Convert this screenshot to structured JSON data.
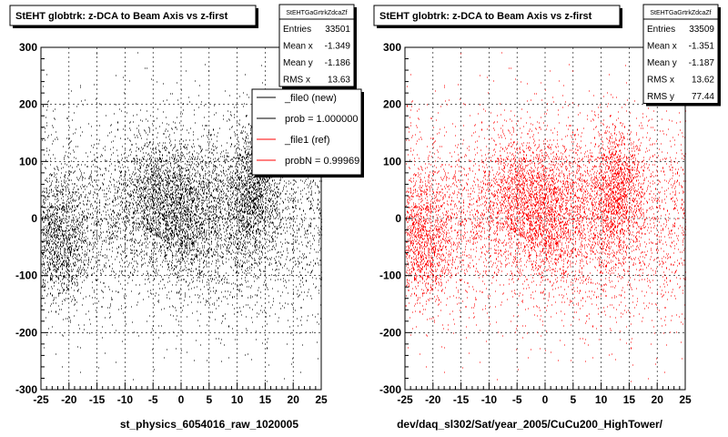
{
  "chart_data": [
    {
      "type": "scatter",
      "title": "StEHT globtrk: z-DCA to Beam Axis vs z-first",
      "xlabel": "st_physics_6054016_raw_1020005",
      "ylabel": "",
      "xlim": [
        -25,
        25
      ],
      "ylim": [
        -300,
        300
      ],
      "xticks": [
        "-25",
        "-20",
        "-15",
        "-10",
        "-5",
        "0",
        "5",
        "10",
        "15",
        "20",
        "25"
      ],
      "yticks": [
        "-300",
        "-200",
        "-100",
        "0",
        "100",
        "200",
        "300"
      ],
      "grid": true,
      "marker_color": "#000000",
      "n_points": 33501,
      "stats": {
        "name": "StEHTGaGrtrkZdcaZf",
        "rows": [
          {
            "label": "Entries",
            "value": "33501"
          },
          {
            "label": "Mean x",
            "value": "-1.349"
          },
          {
            "label": "Mean y",
            "value": "-1.186"
          },
          {
            "label": "RMS x",
            "value": "13.63"
          }
        ]
      },
      "legend": {
        "placement": "top-right",
        "entries": [
          {
            "label": "_file0 (new)",
            "color": "#000000"
          },
          {
            "label": "prob = 1.000000",
            "color": "#000000"
          },
          {
            "label": "_file1 (ref)",
            "color": "#ff0000"
          },
          {
            "label": "probN = 0.99969",
            "color": "#ff0000"
          }
        ]
      },
      "clusters": [
        {
          "x": -22,
          "y": -40,
          "sx": 2.8,
          "sy": 55,
          "w": 0.16
        },
        {
          "x": -5,
          "y": 40,
          "sx": 3.5,
          "sy": 60,
          "w": 0.14
        },
        {
          "x": 0,
          "y": 10,
          "sx": 2.5,
          "sy": 50,
          "w": 0.12
        },
        {
          "x": 13,
          "y": 40,
          "sx": 2.2,
          "sy": 60,
          "w": 0.18
        },
        {
          "x": 6,
          "y": 5,
          "sx": 4,
          "sy": 70,
          "w": 0.1
        }
      ]
    },
    {
      "type": "scatter",
      "title": "StEHT globtrk: z-DCA to Beam Axis vs z-first",
      "xlabel": "dev/daq_sl302/Sat/year_2005/CuCu200_HighTower/",
      "ylabel": "",
      "xlim": [
        -25,
        25
      ],
      "ylim": [
        -300,
        300
      ],
      "xticks": [
        "-25",
        "-20",
        "-15",
        "-10",
        "-5",
        "0",
        "5",
        "10",
        "15",
        "20",
        "25"
      ],
      "yticks": [
        "-300",
        "-200",
        "-100",
        "0",
        "100",
        "200",
        "300"
      ],
      "grid": true,
      "marker_color": "#ff0000",
      "n_points": 33509,
      "stats": {
        "name": "StEHTGaGrtrkZdcaZf",
        "rows": [
          {
            "label": "Entries",
            "value": "33509"
          },
          {
            "label": "Mean x",
            "value": "-1.351"
          },
          {
            "label": "Mean y",
            "value": "-1.187"
          },
          {
            "label": "RMS x",
            "value": "13.62"
          },
          {
            "label": "RMS y",
            "value": "77.44"
          }
        ]
      },
      "clusters": [
        {
          "x": -22,
          "y": -40,
          "sx": 2.8,
          "sy": 55,
          "w": 0.16
        },
        {
          "x": -5,
          "y": 40,
          "sx": 3.5,
          "sy": 60,
          "w": 0.14
        },
        {
          "x": 0,
          "y": 10,
          "sx": 2.5,
          "sy": 50,
          "w": 0.12
        },
        {
          "x": 13,
          "y": 40,
          "sx": 2.2,
          "sy": 60,
          "w": 0.18
        },
        {
          "x": 6,
          "y": 5,
          "sx": 4,
          "sy": 70,
          "w": 0.1
        }
      ]
    }
  ]
}
